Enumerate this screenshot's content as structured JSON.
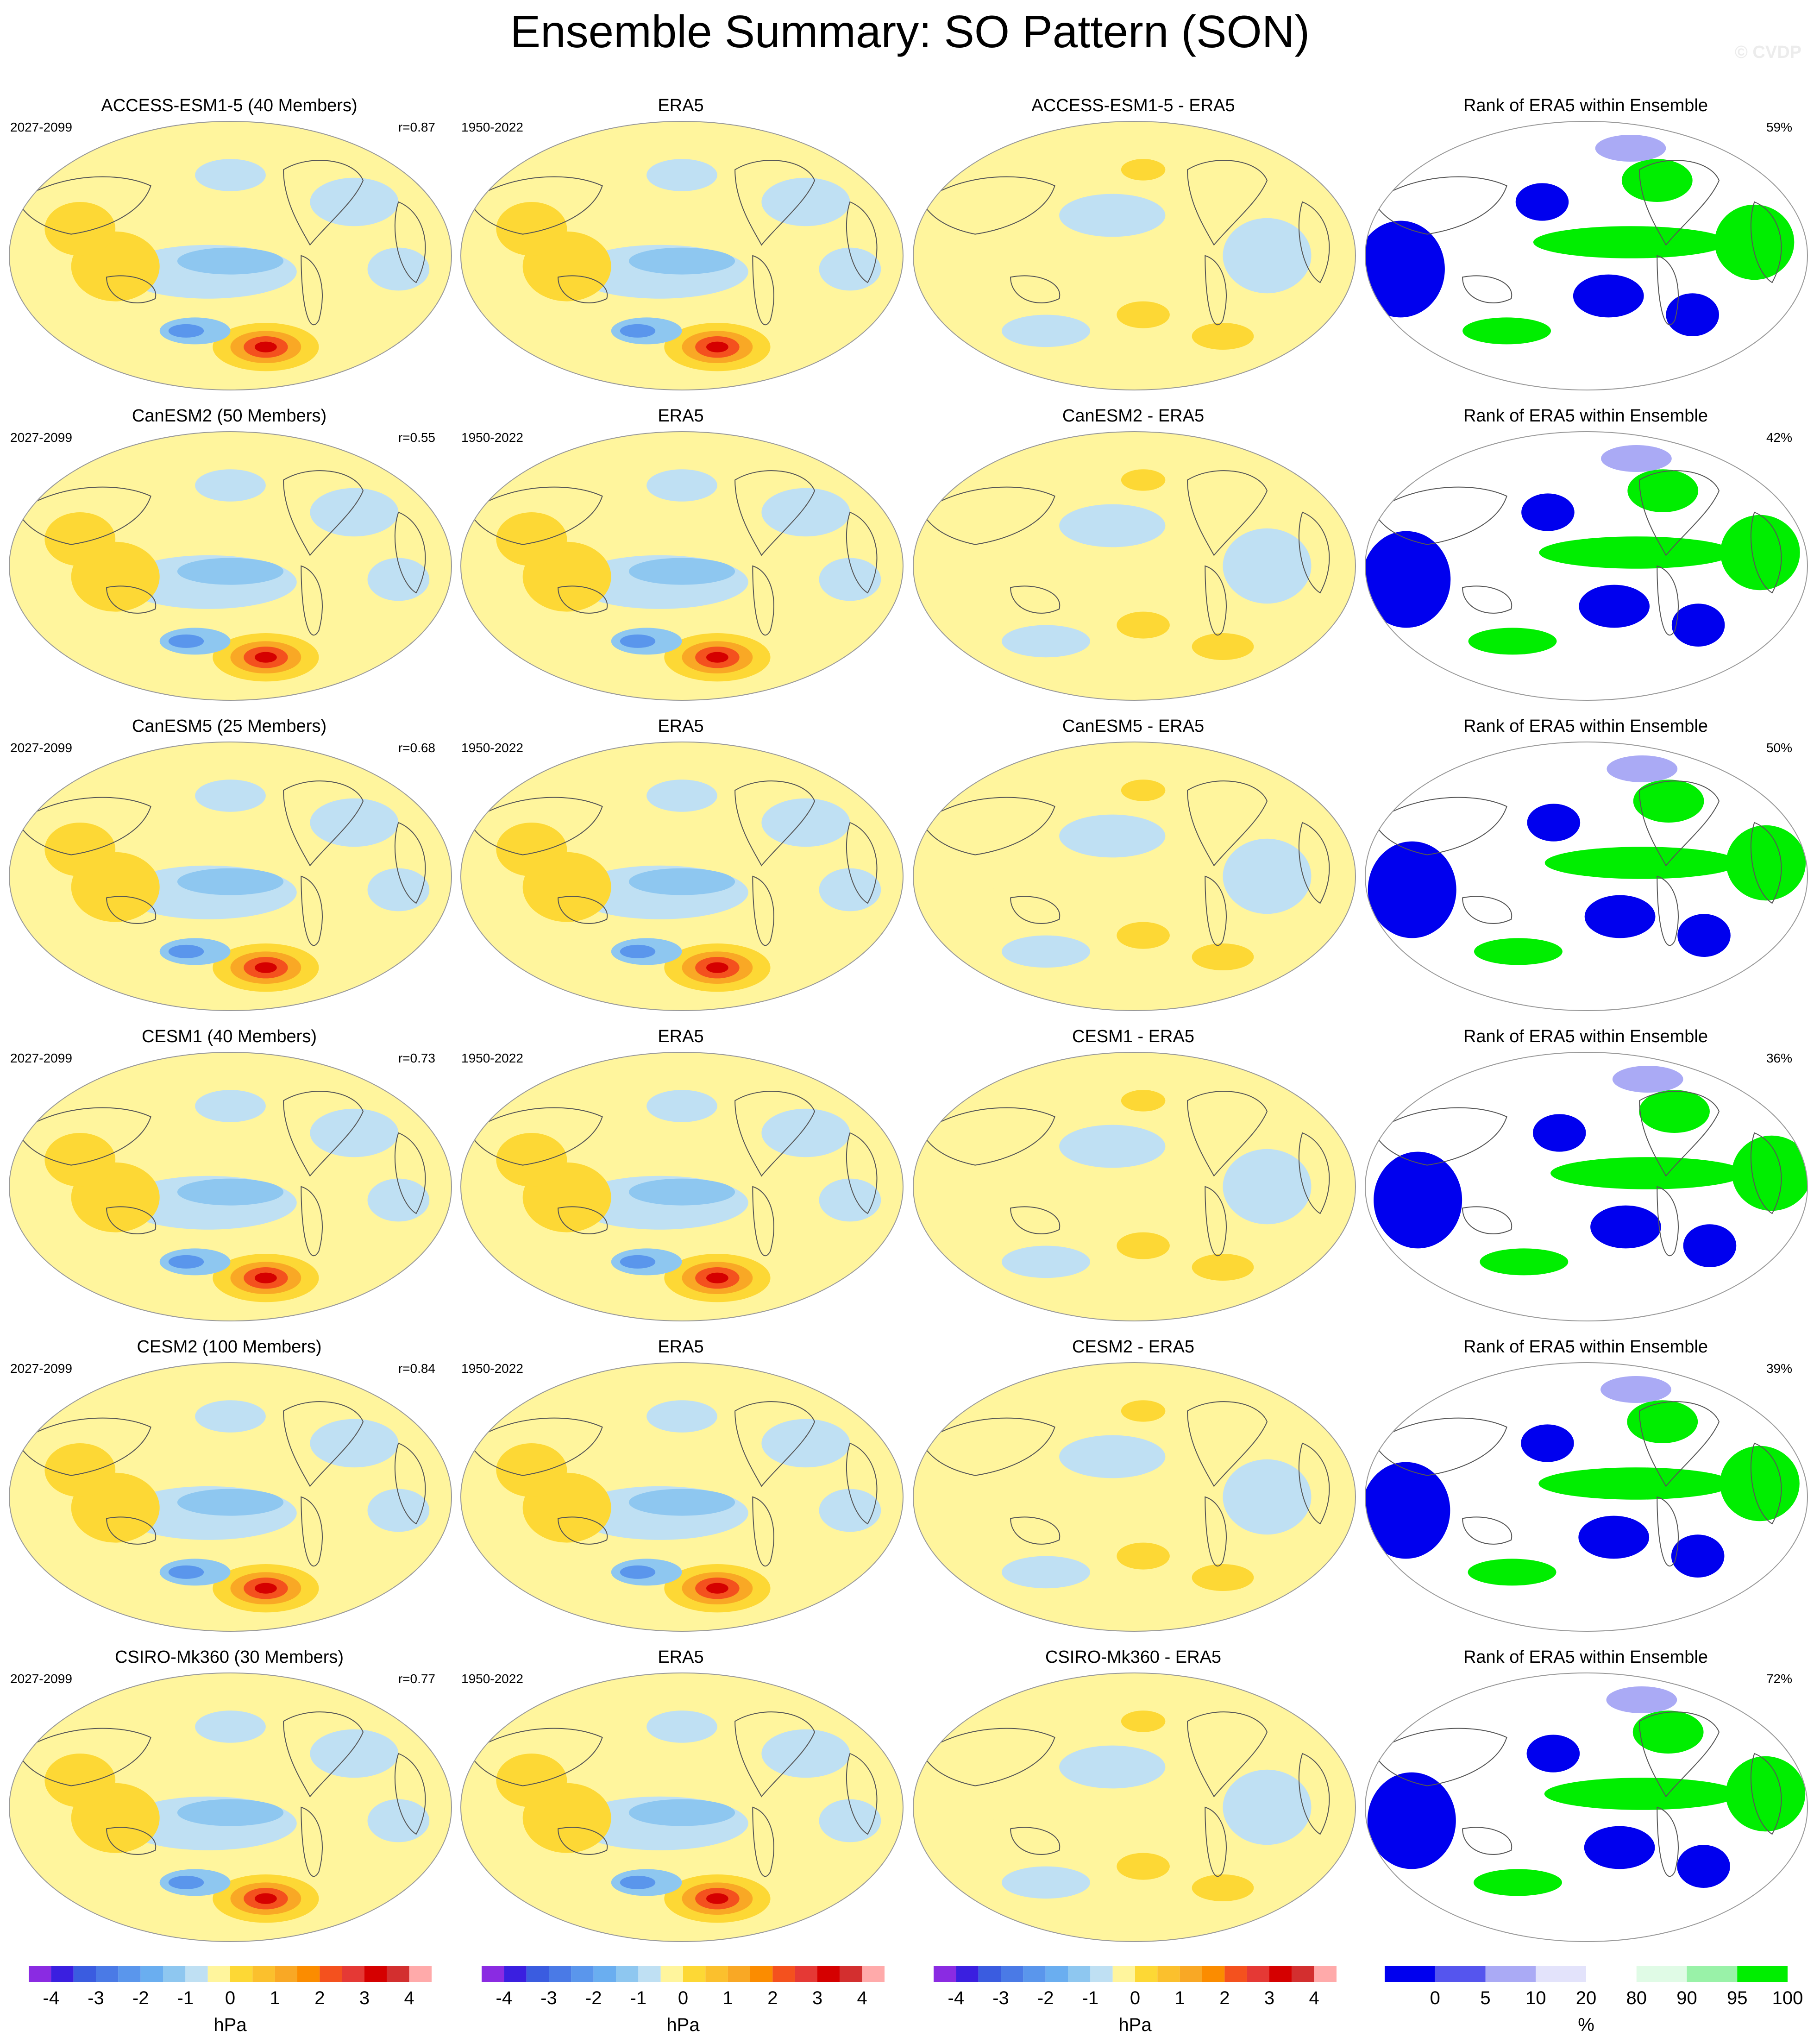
{
  "title": "Ensemble Summary: SO Pattern (SON)",
  "watermark": "© CVDP",
  "rows": [
    {
      "model_title": "ACCESS-ESM1-5 (40 Members)",
      "model_years": "2027-2099",
      "r": "r=0.87",
      "obs_title": "ERA5",
      "obs_years": "1950-2022",
      "diff_title": "ACCESS-ESM1-5 - ERA5",
      "rank_title": "Rank of ERA5 within Ensemble",
      "rank_pct": "59%"
    },
    {
      "model_title": "CanESM2 (50 Members)",
      "model_years": "2027-2099",
      "r": "r=0.55",
      "obs_title": "ERA5",
      "obs_years": "1950-2022",
      "diff_title": "CanESM2 - ERA5",
      "rank_title": "Rank of ERA5 within Ensemble",
      "rank_pct": "42%"
    },
    {
      "model_title": "CanESM5 (25 Members)",
      "model_years": "2027-2099",
      "r": "r=0.68",
      "obs_title": "ERA5",
      "obs_years": "1950-2022",
      "diff_title": "CanESM5 - ERA5",
      "rank_title": "Rank of ERA5 within Ensemble",
      "rank_pct": "50%"
    },
    {
      "model_title": "CESM1 (40 Members)",
      "model_years": "2027-2099",
      "r": "r=0.73",
      "obs_title": "ERA5",
      "obs_years": "1950-2022",
      "diff_title": "CESM1 - ERA5",
      "rank_title": "Rank of ERA5 within Ensemble",
      "rank_pct": "36%"
    },
    {
      "model_title": "CESM2 (100 Members)",
      "model_years": "2027-2099",
      "r": "r=0.84",
      "obs_title": "ERA5",
      "obs_years": "1950-2022",
      "diff_title": "CESM2 - ERA5",
      "rank_title": "Rank of ERA5 within Ensemble",
      "rank_pct": "39%"
    },
    {
      "model_title": "CSIRO-Mk360 (30 Members)",
      "model_years": "2027-2099",
      "r": "r=0.77",
      "obs_title": "ERA5",
      "obs_years": "1950-2022",
      "diff_title": "CSIRO-Mk360 - ERA5",
      "rank_title": "Rank of ERA5 within Ensemble",
      "rank_pct": "72%"
    }
  ],
  "colorbars": {
    "hpa": {
      "unit": "hPa",
      "ticks": [
        "-4",
        "-3",
        "-2",
        "-1",
        "0",
        "1",
        "2",
        "3",
        "4"
      ],
      "colors": [
        "#8a2be2",
        "#3a1fe0",
        "#3a5ce0",
        "#4a7ae6",
        "#5a96ec",
        "#6aaef0",
        "#8ec7f0",
        "#bfe0f3",
        "#fff59d",
        "#fdd835",
        "#fbc02d",
        "#f9a825",
        "#fb8c00",
        "#f4511e",
        "#e53935",
        "#d50000",
        "#d32f2f",
        "#ffaaaa"
      ]
    },
    "rank": {
      "unit": "%",
      "ticks": [
        "0",
        "5",
        "10",
        "20",
        "80",
        "90",
        "95",
        "100"
      ],
      "colors": [
        "#0000ee",
        "#5555ee",
        "#aaaaf5",
        "#e3e3fb",
        "#ffffff",
        "#e0fbe6",
        "#99f2a8",
        "#00ee00"
      ]
    }
  },
  "chart_data": {
    "type": "heatmap",
    "variable": "SO Pattern (SON)",
    "panels_per_row": [
      "model ensemble mean pattern",
      "ERA5 pattern",
      "model minus ERA5 difference",
      "rank of ERA5 within ensemble"
    ],
    "units_pattern": "hPa",
    "pattern_levels": [
      -4,
      -3.5,
      -3,
      -2.5,
      -2,
      -1.5,
      -1,
      -0.5,
      0,
      0.5,
      1,
      1.5,
      2,
      2.5,
      3,
      3.5,
      4
    ],
    "units_rank": "%",
    "rank_levels": [
      0,
      5,
      10,
      20,
      80,
      90,
      95,
      100
    ],
    "models": [
      {
        "name": "ACCESS-ESM1-5",
        "members": 40,
        "r": 0.87,
        "rank_pct": 59
      },
      {
        "name": "CanESM2",
        "members": 50,
        "r": 0.55,
        "rank_pct": 42
      },
      {
        "name": "CanESM5",
        "members": 25,
        "r": 0.68,
        "rank_pct": 50
      },
      {
        "name": "CESM1",
        "members": 40,
        "r": 0.73,
        "rank_pct": 36
      },
      {
        "name": "CESM2",
        "members": 100,
        "r": 0.84,
        "rank_pct": 39
      },
      {
        "name": "CSIRO-Mk360",
        "members": 30,
        "r": 0.77,
        "rank_pct": 72
      }
    ]
  }
}
